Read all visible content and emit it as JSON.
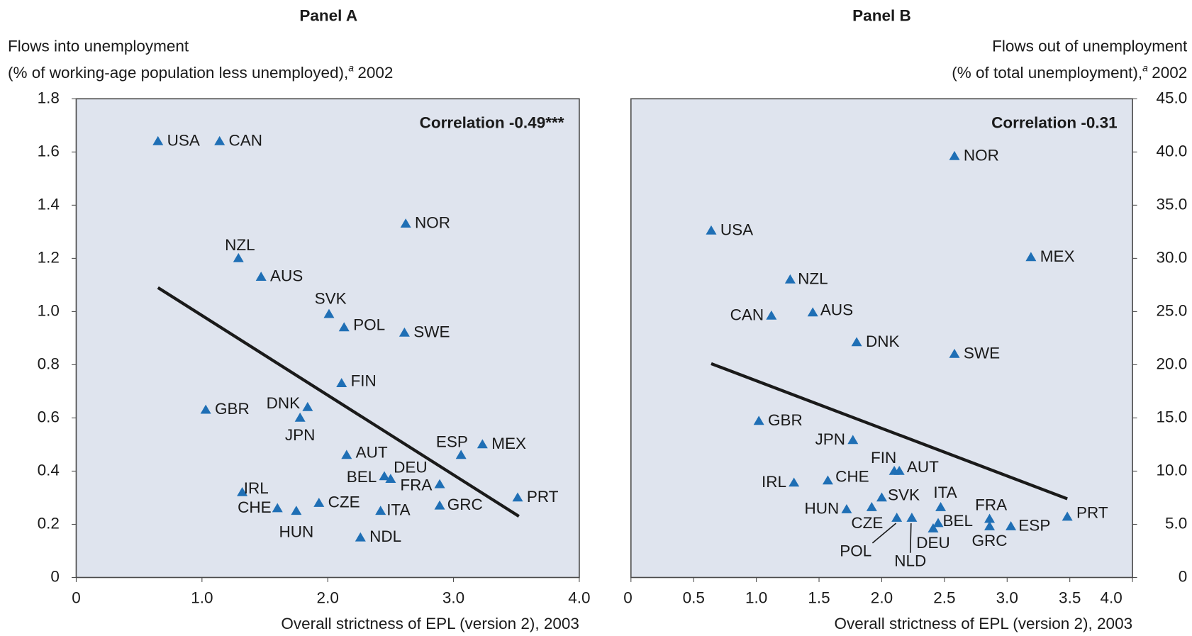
{
  "chart_data": [
    {
      "type": "scatter",
      "title": "Panel A",
      "ylabel": {
        "lines": [
          "Flows into unemployment",
          "(% of working-age population less unemployed),"
        ],
        "footnote": "a",
        "suffix": "2002"
      },
      "xlabel": "Overall strictness of EPL (version 2), 2003",
      "annotation": "Correlation -0.49***",
      "yaxis_side": "left",
      "color": "#1f6fb5",
      "labels": [
        "USA",
        "CAN",
        "NOR",
        "NZL",
        "AUS",
        "SVK",
        "POL",
        "SWE",
        "FIN",
        "GBR",
        "DNK",
        "JPN",
        "ESP",
        "MEX",
        "AUT",
        "DEU",
        "BEL",
        "FRA",
        "IRL",
        "PRT",
        "GRC",
        "CZE",
        "CHE",
        "HUN",
        "ITA",
        "NDL"
      ],
      "x": [
        0.65,
        1.14,
        2.62,
        1.29,
        1.47,
        2.01,
        2.13,
        2.61,
        2.11,
        1.03,
        1.84,
        1.78,
        3.06,
        3.23,
        2.15,
        2.5,
        2.45,
        2.89,
        1.32,
        3.51,
        2.89,
        1.93,
        1.6,
        1.75,
        2.42,
        2.26
      ],
      "y": [
        1.64,
        1.64,
        1.33,
        1.2,
        1.13,
        0.99,
        0.94,
        0.92,
        0.73,
        0.63,
        0.64,
        0.6,
        0.46,
        0.5,
        0.46,
        0.37,
        0.38,
        0.35,
        0.32,
        0.3,
        0.27,
        0.28,
        0.26,
        0.25,
        0.25,
        0.15
      ],
      "trend": {
        "x": [
          0.65,
          3.52
        ],
        "y": [
          1.09,
          0.23
        ]
      },
      "xlim": [
        0,
        4
      ],
      "ylim": [
        0,
        1.8
      ],
      "xticks": [
        0,
        {
          "value": 1,
          "label": "1.0"
        },
        {
          "value": 2,
          "label": "2.0"
        },
        {
          "value": 3,
          "label": "3.0"
        },
        {
          "value": 4,
          "label": "4.0"
        }
      ],
      "yticks": [
        0,
        0.2,
        0.4,
        0.6,
        0.8,
        {
          "value": 1,
          "label": "1.0"
        },
        1.2,
        1.4,
        1.6,
        1.8
      ]
    },
    {
      "type": "scatter",
      "title": "Panel B",
      "ylabel": {
        "lines": [
          "Flows out of unemployment",
          "(% of total unemployment),"
        ],
        "footnote": "a",
        "suffix": "2002"
      },
      "xlabel": "Overall strictness of EPL (version 2), 2003",
      "annotation": "Correlation -0.31",
      "yaxis_side": "right",
      "color": "#1f6fb5",
      "labels": [
        "NOR",
        "USA",
        "MEX",
        "NZL",
        "CAN",
        "AUS",
        "DNK",
        "SWE",
        "GBR",
        "JPN",
        "FIN",
        "AUT",
        "IRL",
        "CHE",
        "SVK",
        "ITA",
        "HUN",
        "CZE",
        "POL",
        "NLD",
        "BEL",
        "DEU",
        "FRA",
        "GRC",
        "ESP",
        "PRT"
      ],
      "x": [
        2.58,
        0.64,
        3.19,
        1.27,
        1.12,
        1.45,
        1.8,
        2.58,
        1.02,
        1.77,
        2.1,
        2.14,
        1.3,
        1.57,
        2.0,
        2.47,
        1.72,
        1.92,
        2.12,
        2.24,
        2.45,
        2.41,
        2.86,
        2.86,
        3.03,
        3.48
      ],
      "y": [
        39.6,
        32.6,
        30.1,
        28.0,
        24.6,
        24.9,
        22.1,
        21.0,
        14.7,
        12.9,
        10.0,
        10.0,
        8.9,
        9.1,
        7.5,
        6.6,
        6.4,
        6.6,
        5.6,
        5.6,
        5.1,
        4.6,
        5.5,
        4.8,
        4.8,
        5.7
      ],
      "trend": {
        "x": [
          0.64,
          3.48
        ],
        "y": [
          20.1,
          7.4
        ]
      },
      "xlim": [
        0,
        4
      ],
      "ylim": [
        0,
        45
      ],
      "xticks": [
        0,
        0.5,
        {
          "value": 1,
          "label": "1.0"
        },
        1.5,
        {
          "value": 2,
          "label": "2.0"
        },
        2.5,
        {
          "value": 3,
          "label": "3.0"
        },
        3.5,
        {
          "value": 4,
          "label": "4.0"
        }
      ],
      "yticks": [
        0,
        {
          "value": 5,
          "label": "5.0"
        },
        {
          "value": 10,
          "label": "10.0"
        },
        {
          "value": 15,
          "label": "15.0"
        },
        {
          "value": 20,
          "label": "20.0"
        },
        {
          "value": 25,
          "label": "25.0"
        },
        {
          "value": 30,
          "label": "30.0"
        },
        {
          "value": 35,
          "label": "35.0"
        },
        {
          "value": 40,
          "label": "40.0"
        },
        {
          "value": 45,
          "label": "45.0"
        }
      ]
    }
  ]
}
